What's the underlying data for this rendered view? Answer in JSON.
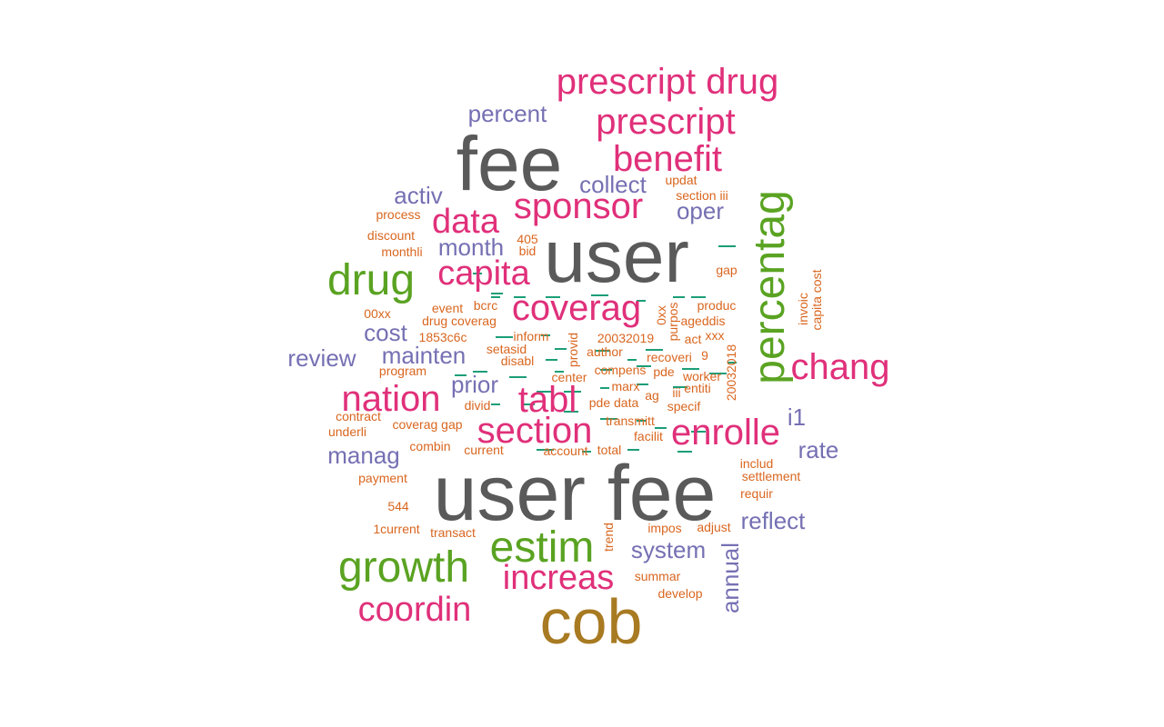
{
  "colors": {
    "gray": "#5a5a5a",
    "pink": "#e0307a",
    "green": "#5aa322",
    "purple": "#7570b3",
    "orange": "#d9661f",
    "bronze": "#a87a22",
    "teal": "#1b9e77"
  },
  "words": [
    {
      "text": "user fee",
      "color": "gray"
    },
    {
      "text": "user",
      "color": "gray"
    },
    {
      "text": "fee",
      "color": "gray"
    },
    {
      "text": "cob",
      "color": "bronze"
    },
    {
      "text": "percentag",
      "color": "green"
    },
    {
      "text": "growth",
      "color": "green"
    },
    {
      "text": "estim",
      "color": "green"
    },
    {
      "text": "drug",
      "color": "green"
    },
    {
      "text": "prescript drug",
      "color": "pink"
    },
    {
      "text": "prescript",
      "color": "pink"
    },
    {
      "text": "benefit",
      "color": "pink"
    },
    {
      "text": "sponsor",
      "color": "pink"
    },
    {
      "text": "data",
      "color": "pink"
    },
    {
      "text": "capita",
      "color": "pink"
    },
    {
      "text": "coverag",
      "color": "pink"
    },
    {
      "text": "chang",
      "color": "pink"
    },
    {
      "text": "nation",
      "color": "pink"
    },
    {
      "text": "tabl",
      "color": "pink"
    },
    {
      "text": "section",
      "color": "pink"
    },
    {
      "text": "enrolle",
      "color": "pink"
    },
    {
      "text": "increas",
      "color": "pink"
    },
    {
      "text": "coordin",
      "color": "pink"
    },
    {
      "text": "percent",
      "color": "purple"
    },
    {
      "text": "collect",
      "color": "purple"
    },
    {
      "text": "activ",
      "color": "purple"
    },
    {
      "text": "oper",
      "color": "purple"
    },
    {
      "text": "month",
      "color": "purple"
    },
    {
      "text": "cost",
      "color": "purple"
    },
    {
      "text": "mainten",
      "color": "purple"
    },
    {
      "text": "review",
      "color": "purple"
    },
    {
      "text": "prior",
      "color": "purple"
    },
    {
      "text": "manag",
      "color": "purple"
    },
    {
      "text": "i1",
      "color": "purple"
    },
    {
      "text": "rate",
      "color": "purple"
    },
    {
      "text": "reflect",
      "color": "purple"
    },
    {
      "text": "system",
      "color": "purple"
    },
    {
      "text": "annual",
      "color": "purple"
    },
    {
      "text": "updat",
      "color": "orange"
    },
    {
      "text": "section iii",
      "color": "orange"
    },
    {
      "text": "process",
      "color": "orange"
    },
    {
      "text": "discount",
      "color": "orange"
    },
    {
      "text": "monthli",
      "color": "orange"
    },
    {
      "text": "405",
      "color": "orange"
    },
    {
      "text": "bid",
      "color": "orange"
    },
    {
      "text": "gap",
      "color": "orange"
    },
    {
      "text": "invoic",
      "color": "orange"
    },
    {
      "text": "capita cost",
      "color": "orange"
    },
    {
      "text": "00xx",
      "color": "orange"
    },
    {
      "text": "event",
      "color": "orange"
    },
    {
      "text": "bcrc",
      "color": "orange"
    },
    {
      "text": "drug coverag",
      "color": "orange"
    },
    {
      "text": "0xx",
      "color": "orange"
    },
    {
      "text": "produc",
      "color": "orange"
    },
    {
      "text": "ageddis",
      "color": "orange"
    },
    {
      "text": "purpos",
      "color": "orange"
    },
    {
      "text": "1853c6c",
      "color": "orange"
    },
    {
      "text": "inform",
      "color": "orange"
    },
    {
      "text": "provid",
      "color": "orange"
    },
    {
      "text": "20032019",
      "color": "orange"
    },
    {
      "text": "act",
      "color": "orange"
    },
    {
      "text": "xxx",
      "color": "orange"
    },
    {
      "text": "setasid",
      "color": "orange"
    },
    {
      "text": "author",
      "color": "orange"
    },
    {
      "text": "disabl",
      "color": "orange"
    },
    {
      "text": "recoveri",
      "color": "orange"
    },
    {
      "text": "9",
      "color": "orange"
    },
    {
      "text": "program",
      "color": "orange"
    },
    {
      "text": "compens",
      "color": "orange"
    },
    {
      "text": "pde",
      "color": "orange"
    },
    {
      "text": "worker",
      "color": "orange"
    },
    {
      "text": "20032018",
      "color": "orange"
    },
    {
      "text": "center",
      "color": "orange"
    },
    {
      "text": "marx",
      "color": "orange"
    },
    {
      "text": "entiti",
      "color": "orange"
    },
    {
      "text": "ag",
      "color": "orange"
    },
    {
      "text": "iii",
      "color": "orange"
    },
    {
      "text": "divid",
      "color": "orange"
    },
    {
      "text": "pde data",
      "color": "orange"
    },
    {
      "text": "specif",
      "color": "orange"
    },
    {
      "text": "contract",
      "color": "orange"
    },
    {
      "text": "transmitt",
      "color": "orange"
    },
    {
      "text": "underli",
      "color": "orange"
    },
    {
      "text": "coverag gap",
      "color": "orange"
    },
    {
      "text": "facilit",
      "color": "orange"
    },
    {
      "text": "combin",
      "color": "orange"
    },
    {
      "text": "current",
      "color": "orange"
    },
    {
      "text": "account",
      "color": "orange"
    },
    {
      "text": "total",
      "color": "orange"
    },
    {
      "text": "includ",
      "color": "orange"
    },
    {
      "text": "payment",
      "color": "orange"
    },
    {
      "text": "settlement",
      "color": "orange"
    },
    {
      "text": "requir",
      "color": "orange"
    },
    {
      "text": "544",
      "color": "orange"
    },
    {
      "text": "1current",
      "color": "orange"
    },
    {
      "text": "transact",
      "color": "orange"
    },
    {
      "text": "trend",
      "color": "orange"
    },
    {
      "text": "impos",
      "color": "orange"
    },
    {
      "text": "adjust",
      "color": "orange"
    },
    {
      "text": "summar",
      "color": "orange"
    },
    {
      "text": "develop",
      "color": "orange"
    }
  ]
}
